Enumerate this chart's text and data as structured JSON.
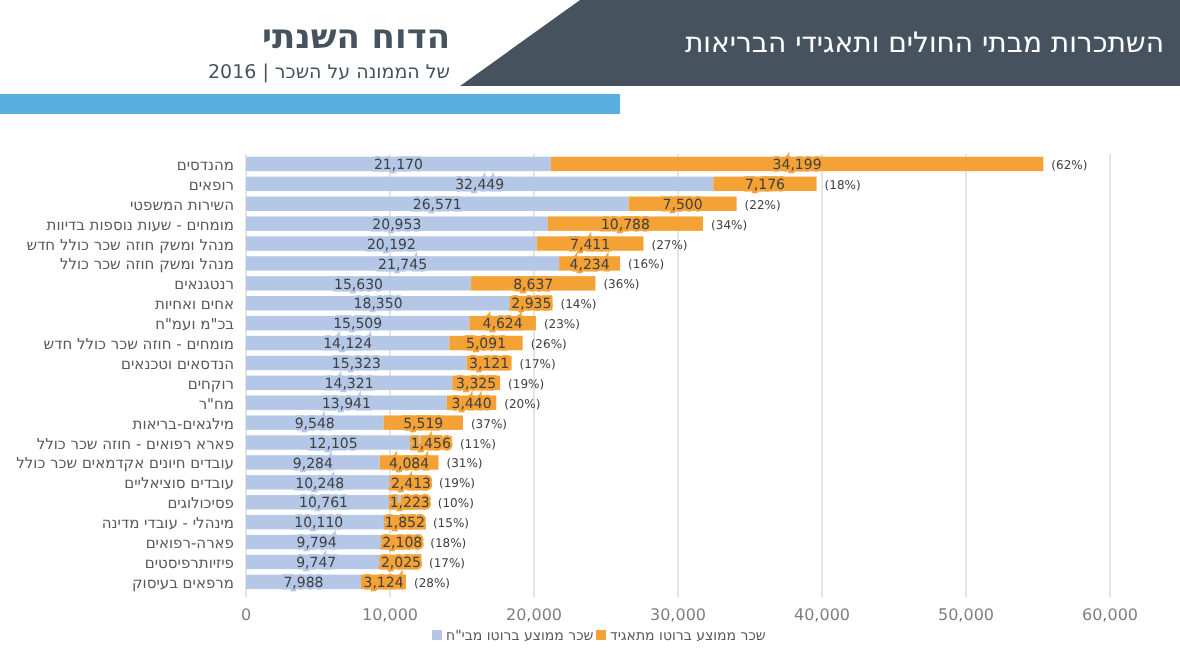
{
  "chart_data": {
    "type": "bar",
    "orientation": "horizontal",
    "stacked": true,
    "title": "השתכרות מבתי החולים ותאגידי הבריאות",
    "subtitle": "הדוח השנתי",
    "categories": [
      "מהנדסים",
      "רופאים",
      "השירות המשפטי",
      "מומחים - שעות נוספות בדיוות",
      "מנהל ומשק חוזה שכר כולל חדש",
      "מנהל ומשק חוזה שכר כולל",
      "רנטגנאים",
      "אחים ואחיות",
      "בכ\"מ ועמ\"ח",
      "מומחים - חוזה שכר כולל חדש",
      "הנדסאים וטכנאים",
      "רוקחים",
      "מח\"ר",
      "מילגאים-בריאות",
      "פארא רפואים - חוזה שכר כולל",
      "עובדים חיונים אקדמאים שכר כולל",
      "עובדים סוציאליים",
      "פסיכולוגים",
      "מינהלי - עובדי מדינה",
      "פארה-רפואים",
      "פיזיותרפיסטים",
      "מרפאים בעיסוק"
    ],
    "series": [
      {
        "name": "שכר ממוצע ברוטו מבי\"ח",
        "color": "#b4c7e7",
        "values": [
          21170,
          32449,
          26571,
          20953,
          20192,
          21745,
          15630,
          18350,
          15509,
          14124,
          15323,
          14321,
          13941,
          9548,
          12105,
          9284,
          10248,
          10761,
          10110,
          9794,
          9747,
          7988
        ],
        "value_labels": [
          "21,170",
          "32,449",
          "26,571",
          "20,953",
          "20,192",
          "21,745",
          "15,630",
          "18,350",
          "15,509",
          "14,124",
          "15,323",
          "14,321",
          "13,941",
          "9,548",
          "12,105",
          "9,284",
          "10,248",
          "10,761",
          "10,110",
          "9,794",
          "9,747",
          "7,988"
        ]
      },
      {
        "name": "שכר ממוצע ברוטו מתאגיד",
        "color": "#f4a236",
        "values": [
          34199,
          7176,
          7500,
          10788,
          7411,
          4234,
          8637,
          2935,
          4624,
          5091,
          3121,
          3325,
          3440,
          5519,
          1456,
          4084,
          2413,
          1223,
          1852,
          2108,
          2025,
          3124
        ],
        "value_labels": [
          "34,199",
          "7,176",
          "7,500",
          "10,788",
          "7,411",
          "4,234",
          "8,637",
          "2,935",
          "4,624",
          "5,091",
          "3,121",
          "3,325",
          "3,440",
          "5,519",
          "1,456",
          "4,084",
          "2,413",
          "1,223",
          "1,852",
          "2,108",
          "2,025",
          "3,124"
        ]
      }
    ],
    "xlim": [
      0,
      60000
    ],
    "xticks": [
      {
        "value": 0,
        "label": "0"
      },
      {
        "value": 10000,
        "label": "10,000"
      },
      {
        "value": 20000,
        "label": "20,000"
      },
      {
        "value": 30000,
        "label": "30,000"
      },
      {
        "value": 40000,
        "label": "40,000"
      },
      {
        "value": 50000,
        "label": "50,000"
      },
      {
        "value": 60000,
        "label": "60,000"
      }
    ],
    "grid": "x",
    "legend": "bottom",
    "annotations": [
      "של הממונה על השכר | 2016",
      {
        "text": "(62%)",
        "x": 55369,
        "y": "מהנדסים"
      },
      {
        "text": "(18%)",
        "x": 39625,
        "y": "רופאים"
      },
      {
        "text": "(22%)",
        "x": 34071,
        "y": "השירות המשפטי"
      },
      {
        "text": "(34%)",
        "x": 31741,
        "y": "מומחים - שעות נוספות בדיוות"
      },
      {
        "text": "(27%)",
        "x": 27603,
        "y": "מנהל ומשק חוזה שכר כולל חדש"
      },
      {
        "text": "(16%)",
        "x": 25979,
        "y": "מנהל ומשק חוזה שכר כולל"
      },
      {
        "text": "(36%)",
        "x": 24267,
        "y": "רנטגנאים"
      },
      {
        "text": "(14%)",
        "x": 21285,
        "y": "אחים ואחיות"
      },
      {
        "text": "(23%)",
        "x": 20133,
        "y": "בכ\"מ ועמ\"ח"
      },
      {
        "text": "(26%)",
        "x": 19215,
        "y": "מומחים - חוזה שכר כולל חדש"
      },
      {
        "text": "(17%)",
        "x": 18444,
        "y": "הנדסאים וטכנאים"
      },
      {
        "text": "(19%)",
        "x": 17646,
        "y": "רוקחים"
      },
      {
        "text": "(20%)",
        "x": 17381,
        "y": "מח\"ר"
      },
      {
        "text": "(37%)",
        "x": 15067,
        "y": "מילגאים-בריאות"
      },
      {
        "text": "(11%)",
        "x": 13561,
        "y": "פארא רפואים - חוזה שכר כולל"
      },
      {
        "text": "(31%)",
        "x": 13368,
        "y": "עובדים חיונים אקדמאים שכר כולל"
      },
      {
        "text": "(19%)",
        "x": 12661,
        "y": "עובדים סוציאליים"
      },
      {
        "text": "(10%)",
        "x": 11984,
        "y": "פסיכולוגים"
      },
      {
        "text": "(15%)",
        "x": 11962,
        "y": "מינהלי - עובדי מדינה"
      },
      {
        "text": "(18%)",
        "x": 11902,
        "y": "פארה-רפואים"
      },
      {
        "text": "(17%)",
        "x": 11772,
        "y": "פיזיותרפיסטים"
      },
      {
        "text": "(28%)",
        "x": 11112,
        "y": "מרפאים בעיסוק"
      }
    ]
  }
}
